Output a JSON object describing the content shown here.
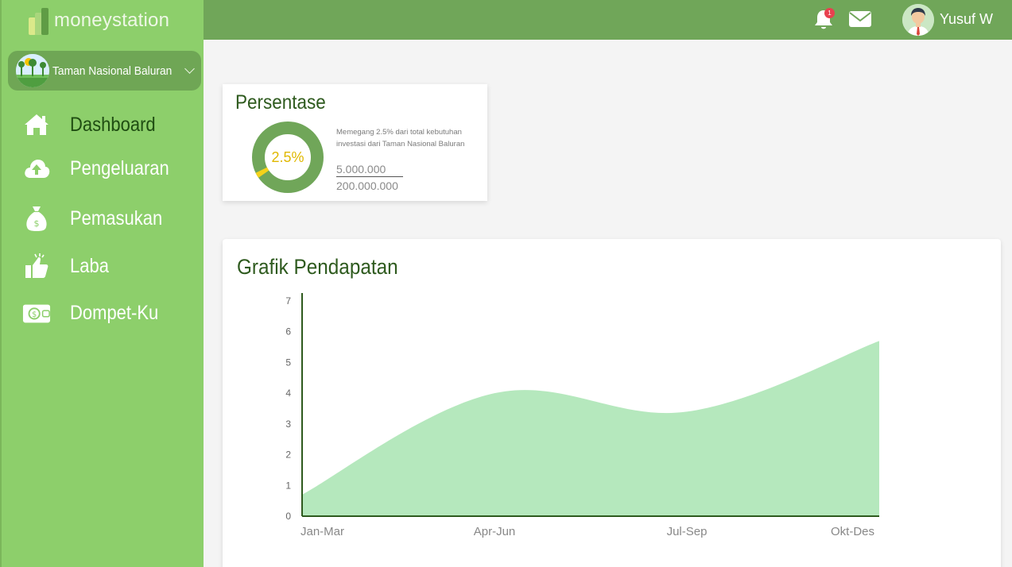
{
  "app": {
    "logo_text": "moneystation"
  },
  "sidebar": {
    "park": {
      "name": "Taman Nasional Baluran"
    },
    "items": [
      {
        "label": "Dashboard",
        "icon": "home-icon",
        "active": true
      },
      {
        "label": "Pengeluaran",
        "icon": "cloud-upload-icon",
        "active": false
      },
      {
        "label": "Pemasukan",
        "icon": "money-bag-icon",
        "active": false
      },
      {
        "label": "Laba",
        "icon": "thumbs-up-icon",
        "active": false
      },
      {
        "label": "Dompet-Ku",
        "icon": "wallet-icon",
        "active": false
      }
    ]
  },
  "topbar": {
    "notification_count": "1",
    "user_name": "Yusuf W"
  },
  "persentase": {
    "title": "Persentase",
    "percent_label": "2.5%",
    "percent_value": 2.5,
    "description": "Memegang 2.5% dari total kebutuhan investasi dari Taman Nasional Baluran",
    "numerator": "5.000.000",
    "denominator": "200.000.000"
  },
  "chart_data": {
    "type": "area",
    "title": "Grafik Pendapatan",
    "categories": [
      "Jan-Mar",
      "Apr-Jun",
      "Jul-Sep",
      "Okt-Des"
    ],
    "values": [
      0.7,
      4.0,
      3.4,
      5.7
    ],
    "ylim": [
      0,
      7
    ],
    "yticks": [
      "0",
      "1",
      "2",
      "3",
      "4",
      "5",
      "6",
      "7"
    ],
    "xlabel": "",
    "ylabel": "",
    "grid": false,
    "colors": {
      "fill": "#b5e8bd",
      "axis": "#2e5a1e"
    }
  },
  "colors": {
    "sidebar": "#8dcf6b",
    "topbar": "#70a659",
    "accent_dark": "#2e5a1e",
    "donut_track": "#70a659",
    "donut_value": "#f5d21a",
    "percent_text": "#e0b800"
  }
}
